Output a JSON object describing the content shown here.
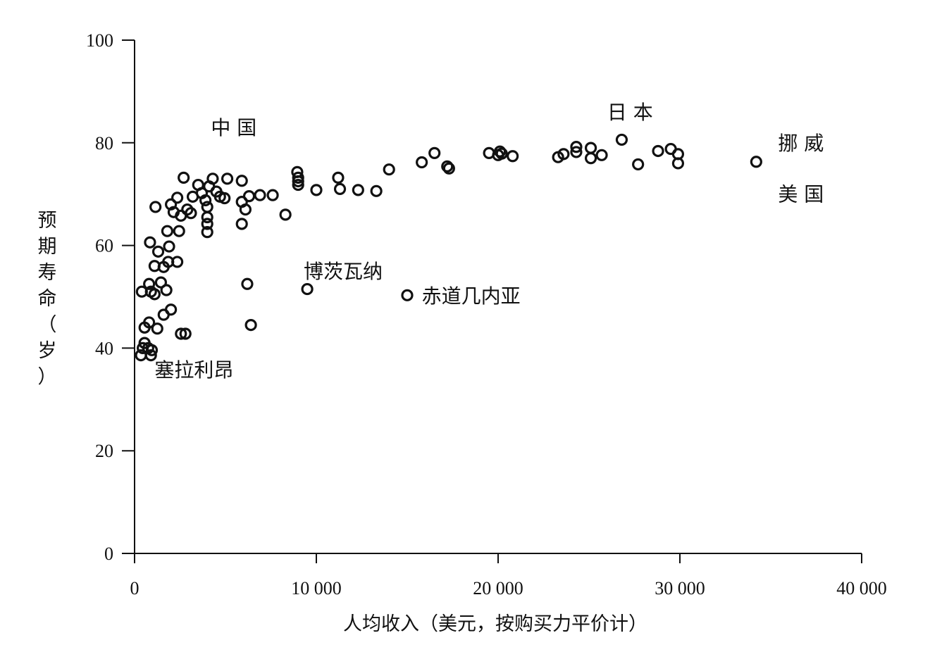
{
  "chart_data": {
    "type": "scatter",
    "xlabel": "人均收入（美元，按购买力平价计）",
    "ylabel_chars": [
      "预",
      "期",
      "寿",
      "命",
      "（",
      "岁",
      "）"
    ],
    "xlim": [
      0,
      40000
    ],
    "ylim": [
      0,
      100
    ],
    "x_ticks": [
      {
        "value": 0,
        "label": "0"
      },
      {
        "value": 10000,
        "label": "10 000"
      },
      {
        "value": 20000,
        "label": "20 000"
      },
      {
        "value": 30000,
        "label": "30 000"
      },
      {
        "value": 40000,
        "label": "40 000"
      }
    ],
    "y_ticks": [
      {
        "value": 0,
        "label": "0"
      },
      {
        "value": 20,
        "label": "20"
      },
      {
        "value": 40,
        "label": "40"
      },
      {
        "value": 60,
        "label": "60"
      },
      {
        "value": 80,
        "label": "80"
      },
      {
        "value": 100,
        "label": "100"
      }
    ],
    "grid": false,
    "annotations": [
      {
        "text": "中 国",
        "x": 4200,
        "y": 83
      },
      {
        "text": "日 本",
        "x": 26000,
        "y": 86
      },
      {
        "text": "挪 威",
        "x": 35400,
        "y": 80
      },
      {
        "text": "美 国",
        "x": 35400,
        "y": 70
      },
      {
        "text": "博茨瓦纳",
        "x": 9300,
        "y": 55
      },
      {
        "text": "赤道几内亚",
        "x": 15800,
        "y": 50.2
      },
      {
        "text": "塞拉利昂",
        "x": 1100,
        "y": 35.8
      }
    ],
    "points": [
      [
        350,
        38.6
      ],
      [
        450,
        40
      ],
      [
        550,
        41
      ],
      [
        750,
        40
      ],
      [
        900,
        38.6
      ],
      [
        950,
        39.6
      ],
      [
        550,
        44
      ],
      [
        800,
        45
      ],
      [
        1250,
        43.8
      ],
      [
        400,
        51
      ],
      [
        800,
        52.5
      ],
      [
        900,
        51
      ],
      [
        1100,
        50.5
      ],
      [
        1450,
        52.8
      ],
      [
        1750,
        51.3
      ],
      [
        1600,
        46.5
      ],
      [
        2000,
        47.5
      ],
      [
        850,
        60.6
      ],
      [
        1100,
        56
      ],
      [
        1300,
        58.8
      ],
      [
        1600,
        55.8
      ],
      [
        1850,
        56.8
      ],
      [
        1900,
        59.8
      ],
      [
        1800,
        62.8
      ],
      [
        2350,
        56.8
      ],
      [
        2450,
        62.8
      ],
      [
        1150,
        67.5
      ],
      [
        2000,
        68
      ],
      [
        2150,
        66.5
      ],
      [
        2350,
        69.3
      ],
      [
        2550,
        65.8
      ],
      [
        2700,
        73.2
      ],
      [
        2900,
        67
      ],
      [
        3100,
        66.3
      ],
      [
        3200,
        69.5
      ],
      [
        3500,
        71.8
      ],
      [
        3700,
        70.2
      ],
      [
        3900,
        68.8
      ],
      [
        4000,
        67.5
      ],
      [
        4100,
        71.5
      ],
      [
        4300,
        73
      ],
      [
        4500,
        70.5
      ],
      [
        4700,
        69.5
      ],
      [
        4950,
        69.2
      ],
      [
        4000,
        65.5
      ],
      [
        4000,
        64.2
      ],
      [
        4000,
        62.6
      ],
      [
        2550,
        42.8
      ],
      [
        2800,
        42.8
      ],
      [
        5100,
        73
      ],
      [
        5900,
        72.6
      ],
      [
        5900,
        68.5
      ],
      [
        6300,
        69.6
      ],
      [
        6100,
        67
      ],
      [
        5900,
        64.2
      ],
      [
        6900,
        69.8
      ],
      [
        7600,
        69.8
      ],
      [
        8300,
        66
      ],
      [
        8950,
        74.3
      ],
      [
        9000,
        73.2
      ],
      [
        9000,
        72.5
      ],
      [
        9000,
        71.8
      ],
      [
        6200,
        52.5
      ],
      [
        6400,
        44.5
      ],
      [
        9500,
        51.5
      ],
      [
        10000,
        70.8
      ],
      [
        11200,
        73.2
      ],
      [
        11300,
        71
      ],
      [
        12300,
        70.8
      ],
      [
        13300,
        70.6
      ],
      [
        14000,
        74.8
      ],
      [
        15000,
        50.3
      ],
      [
        15800,
        76.2
      ],
      [
        16500,
        78
      ],
      [
        17200,
        75.4
      ],
      [
        17300,
        75
      ],
      [
        19500,
        78
      ],
      [
        20000,
        77.6
      ],
      [
        20100,
        78.3
      ],
      [
        20200,
        77.9
      ],
      [
        20800,
        77.4
      ],
      [
        23300,
        77.2
      ],
      [
        23600,
        77.8
      ],
      [
        24300,
        78.2
      ],
      [
        24300,
        79.2
      ],
      [
        25100,
        79
      ],
      [
        25100,
        77
      ],
      [
        25700,
        77.6
      ],
      [
        26800,
        80.6
      ],
      [
        27700,
        75.8
      ],
      [
        28800,
        78.4
      ],
      [
        29500,
        78.8
      ],
      [
        29900,
        77.8
      ],
      [
        29900,
        76
      ],
      [
        34200,
        76.3
      ]
    ]
  }
}
